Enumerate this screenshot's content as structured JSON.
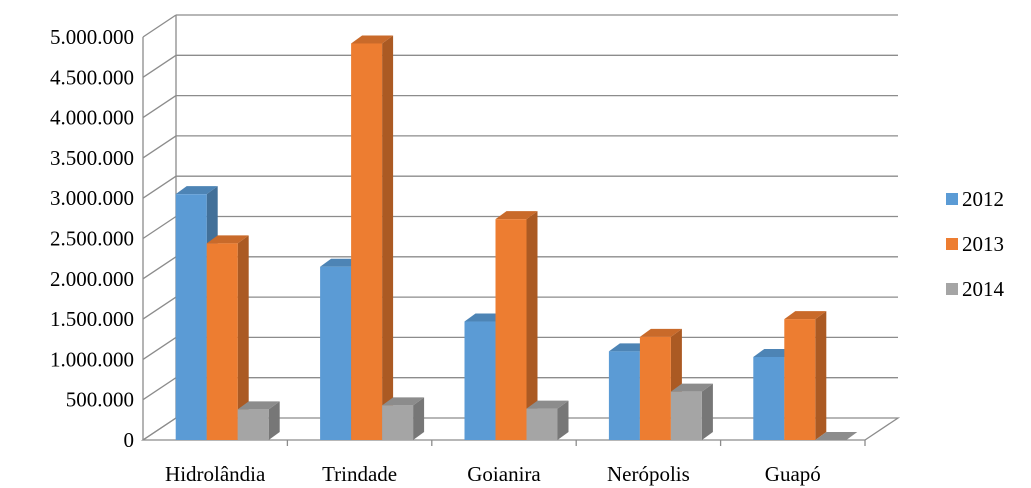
{
  "chart_data": {
    "type": "bar",
    "style": "3d-clustered-column",
    "categories": [
      "Hidrolândia",
      "Trindade",
      "Goianira",
      "Nerópolis",
      "Guapó"
    ],
    "series": [
      {
        "name": "2012",
        "values": [
          3050000,
          2150000,
          1470000,
          1100000,
          1030000
        ],
        "color": "#5b9bd5"
      },
      {
        "name": "2013",
        "values": [
          2440000,
          4920000,
          2740000,
          1280000,
          1500000
        ],
        "color": "#ed7d31"
      },
      {
        "name": "2014",
        "values": [
          380000,
          430000,
          390000,
          600000,
          0
        ],
        "color": "#a5a5a5"
      }
    ],
    "y_ticks": [
      "0",
      "500.000",
      "1.000.000",
      "1.500.000",
      "2.000.000",
      "2.500.000",
      "3.000.000",
      "3.500.000",
      "4.000.000",
      "4.500.000",
      "5.000.000"
    ],
    "ylim": [
      0,
      5000000
    ],
    "grid": true,
    "legend_position": "right"
  }
}
